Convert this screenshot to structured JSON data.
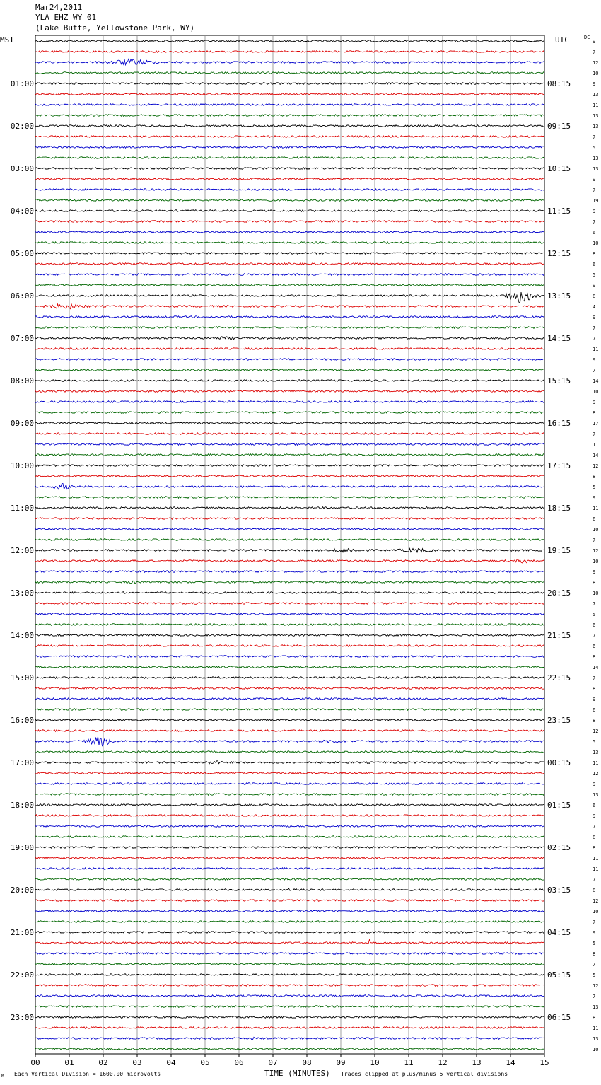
{
  "header": {
    "date": "Mar24,2011",
    "station": "YLA EHZ WY 01",
    "location": "(Lake Butte, Yellowstone Park, WY)"
  },
  "left_tz": "MST",
  "right_tz": "UTC",
  "dc_label": "DC",
  "footer": {
    "logo": "M",
    "left": "Each Vertical Division = 1600.00 microvolts",
    "xlabel": "TIME (MINUTES)",
    "right": "Traces clipped at plus/minus 5 vertical divisions"
  },
  "colors": {
    "trace_cycle": [
      "#000000",
      "#dd0000",
      "#0000cc",
      "#006600"
    ],
    "grid": "#888888"
  },
  "chart_data": {
    "type": "line",
    "title": "YLA EHZ WY 01",
    "xlabel": "TIME (MINUTES)",
    "xlim": [
      0,
      15
    ],
    "x_ticks": [
      "00",
      "01",
      "02",
      "03",
      "04",
      "05",
      "06",
      "07",
      "08",
      "09",
      "10",
      "11",
      "12",
      "13",
      "14",
      "15"
    ],
    "left_hour_labels": [
      "01:00",
      "02:00",
      "03:00",
      "04:00",
      "05:00",
      "06:00",
      "07:00",
      "08:00",
      "09:00",
      "10:00",
      "11:00",
      "12:00",
      "13:00",
      "14:00",
      "15:00",
      "16:00",
      "17:00",
      "18:00",
      "19:00",
      "20:00",
      "21:00",
      "22:00",
      "23:00"
    ],
    "right_hour_labels": [
      "08:15",
      "09:15",
      "10:15",
      "11:15",
      "12:15",
      "13:15",
      "14:15",
      "15:15",
      "16:15",
      "17:15",
      "18:15",
      "19:15",
      "20:15",
      "21:15",
      "22:15",
      "23:15",
      "00:15",
      "01:15",
      "02:15",
      "03:15",
      "04:15",
      "05:15",
      "06:15"
    ],
    "dc_offsets": [
      9,
      7,
      12,
      10,
      9,
      13,
      11,
      13,
      13,
      7,
      5,
      13,
      13,
      9,
      7,
      19,
      9,
      7,
      6,
      10,
      8,
      6,
      5,
      9,
      8,
      4,
      9,
      7,
      7,
      11,
      9,
      7,
      14,
      10,
      9,
      8,
      17,
      7,
      11,
      14,
      12,
      8,
      5,
      9,
      11,
      6,
      10,
      7,
      12,
      10,
      9,
      8,
      10,
      7,
      5,
      6,
      7,
      6,
      8,
      14,
      7,
      8,
      9,
      6,
      8,
      12,
      5,
      13,
      11,
      12,
      9,
      13,
      6,
      9,
      7,
      8,
      8,
      11,
      11,
      7,
      8,
      12,
      10,
      7,
      9,
      5,
      8,
      7,
      5,
      12,
      7,
      13,
      8,
      11,
      13,
      10
    ],
    "events": [
      {
        "row": 2,
        "minute": 2.8,
        "width_min": 2.0,
        "amp": 5
      },
      {
        "row": 24,
        "minute": 14.3,
        "width_min": 1.2,
        "amp": 11
      },
      {
        "row": 25,
        "minute": 0.9,
        "width_min": 2.0,
        "amp": 4
      },
      {
        "row": 28,
        "minute": 5.5,
        "width_min": 2.0,
        "amp": 2.5
      },
      {
        "row": 42,
        "minute": 0.8,
        "width_min": 0.9,
        "amp": 5
      },
      {
        "row": 44,
        "minute": 11.5,
        "width_min": 1.5,
        "amp": 2
      },
      {
        "row": 48,
        "minute": 9.2,
        "width_min": 1.5,
        "amp": 4
      },
      {
        "row": 48,
        "minute": 11.2,
        "width_min": 1.6,
        "amp": 3.5
      },
      {
        "row": 49,
        "minute": 14.4,
        "width_min": 0.9,
        "amp": 3.5
      },
      {
        "row": 51,
        "minute": 2.9,
        "width_min": 0.6,
        "amp": 2.5
      },
      {
        "row": 58,
        "minute": 11.0,
        "width_min": 1.5,
        "amp": 2
      },
      {
        "row": 66,
        "minute": 1.9,
        "width_min": 1.0,
        "amp": 8
      },
      {
        "row": 66,
        "minute": 8.8,
        "width_min": 1.8,
        "amp": 2.5
      },
      {
        "row": 68,
        "minute": 5.2,
        "width_min": 1.2,
        "amp": 3
      },
      {
        "row": 80,
        "minute": 7.6,
        "width_min": 0.9,
        "amp": 2.5
      },
      {
        "row": 85,
        "minute": 9.85,
        "width_min": 0.1,
        "amp": 15
      },
      {
        "row": 94,
        "minute": 6.4,
        "width_min": 0.4,
        "amp": 2.5
      }
    ]
  }
}
